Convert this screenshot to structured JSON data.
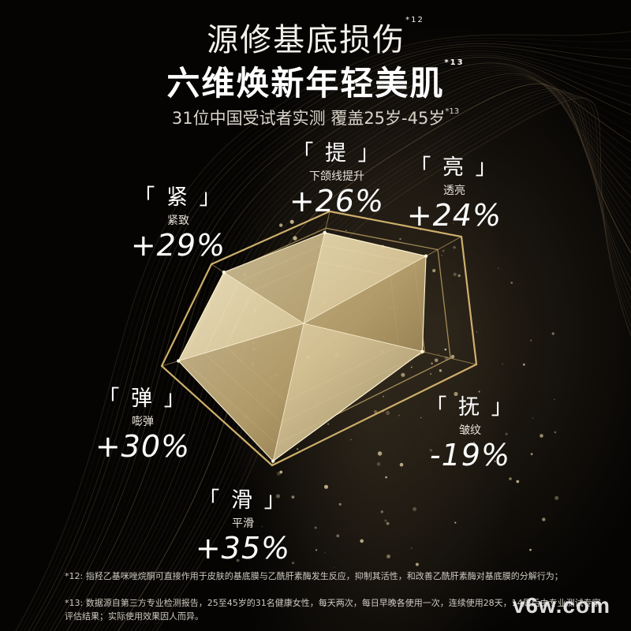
{
  "header": {
    "title_line1": "源修基底损伤",
    "title_line1_sup": "*12",
    "title_line2": "六维焕新年轻美肌",
    "title_line2_sup": "*13",
    "subtitle": "31位中国受试者实测 覆盖25岁-45岁",
    "subtitle_sup": "*13"
  },
  "chart_data": {
    "type": "radar",
    "axes": [
      {
        "name": "「 提 」",
        "desc": "下颌线提升",
        "value": 26,
        "label": "+26%"
      },
      {
        "name": "「 亮 」",
        "desc": "透亮",
        "value": 24,
        "label": "+24%"
      },
      {
        "name": "「 抚 」",
        "desc": "皱纹",
        "value": -19,
        "label": "-19%"
      },
      {
        "name": "「 滑 」",
        "desc": "平滑",
        "value": 35,
        "label": "+35%"
      },
      {
        "name": "「 弹 」",
        "desc": "嘭弹",
        "value": 30,
        "label": "+30%"
      },
      {
        "name": "「 紧 」",
        "desc": "紧致",
        "value": 29,
        "label": "+29%"
      }
    ],
    "rings": 4,
    "colors": {
      "frame": "#d8b872",
      "fill_light": "#f3e7c2",
      "fill_dark": "#8e7848"
    }
  },
  "footnotes": {
    "note12": "*12: 指羟乙基咪唑烷酮可直接作用于皮肤的基底膜与乙酰肝素酶发生反应，抑制其活性，和改善乙酰肝素酶对基底膜的分解行为；",
    "note13": "*13: 数据源自第三方专业检测报告，25至45岁的31名健康女性，每天两次，每日早晚各使用一次，连续使用28天，14周后由专业测试专家评估结果；实际使用效果因人而异。"
  },
  "watermark": "v6w.com"
}
